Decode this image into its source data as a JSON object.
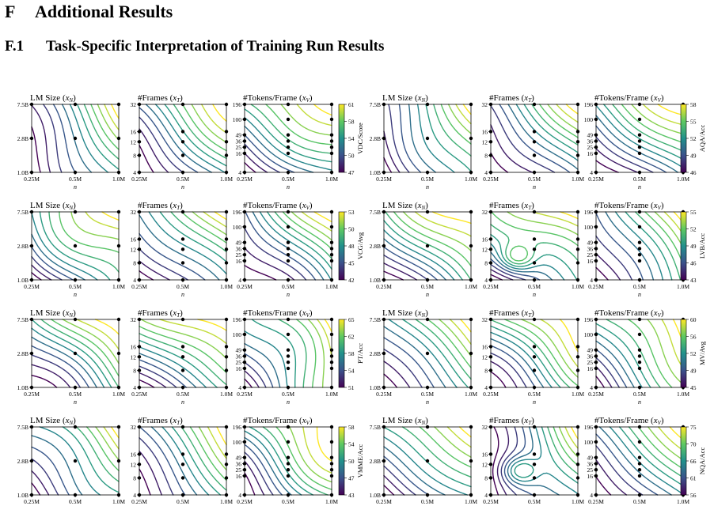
{
  "section": {
    "number": "F",
    "title": "Additional Results"
  },
  "subsection": {
    "number": "F.1",
    "title": "Task-Specific Interpretation of Training Run Results"
  },
  "panel_titles": {
    "lm": [
      "LM Size (",
      "x",
      "N",
      ")"
    ],
    "frames": [
      "#Frames (",
      "x",
      "T",
      ")"
    ],
    "tokens": [
      "#Tokens/Frame (",
      "x",
      "V",
      ")"
    ]
  },
  "x_axis": {
    "label": "n",
    "ticks": [
      "0.25M",
      "0.5M",
      "1.0M"
    ]
  },
  "y_ticks": {
    "lm": [
      "1.0B",
      "2.8B",
      "7.5B"
    ],
    "frames": [
      "4",
      "8",
      "12",
      "16",
      "32"
    ],
    "tokens": [
      "4",
      "16",
      "25",
      "36",
      "49",
      "100",
      "196"
    ]
  },
  "colormap": [
    "#440154",
    "#3b528b",
    "#21918c",
    "#5ec962",
    "#fde725"
  ],
  "chart_data": [
    {
      "type": "heatmap",
      "metric": "VDC/Score",
      "colorbar_ticks": [
        "47",
        "50",
        "54",
        "58",
        "61"
      ],
      "range": [
        47,
        61
      ]
    },
    {
      "type": "heatmap",
      "metric": "AQA/Acc",
      "colorbar_ticks": [
        "46",
        "49",
        "52",
        "55",
        "58"
      ],
      "range": [
        46,
        58
      ]
    },
    {
      "type": "heatmap",
      "metric": "VCG/Avg",
      "colorbar_ticks": [
        "42",
        "45",
        "48",
        "50",
        "53"
      ],
      "range": [
        42,
        53
      ]
    },
    {
      "type": "heatmap",
      "metric": "LVB/Acc",
      "colorbar_ticks": [
        "43",
        "46",
        "49",
        "52",
        "55"
      ],
      "range": [
        43,
        55
      ]
    },
    {
      "type": "heatmap",
      "metric": "PT/Acc",
      "colorbar_ticks": [
        "51",
        "54",
        "58",
        "62",
        "65"
      ],
      "range": [
        51,
        65
      ]
    },
    {
      "type": "heatmap",
      "metric": "MV/Avg",
      "colorbar_ticks": [
        "45",
        "49",
        "52",
        "56",
        "60"
      ],
      "range": [
        45,
        60
      ]
    },
    {
      "type": "heatmap",
      "metric": "VMME/Acc",
      "colorbar_ticks": [
        "43",
        "47",
        "50",
        "54",
        "58"
      ],
      "range": [
        43,
        58
      ]
    },
    {
      "type": "heatmap",
      "metric": "NQA/Acc",
      "colorbar_ticks": [
        "56",
        "61",
        "66",
        "70",
        "75"
      ],
      "range": [
        56,
        75
      ]
    }
  ]
}
